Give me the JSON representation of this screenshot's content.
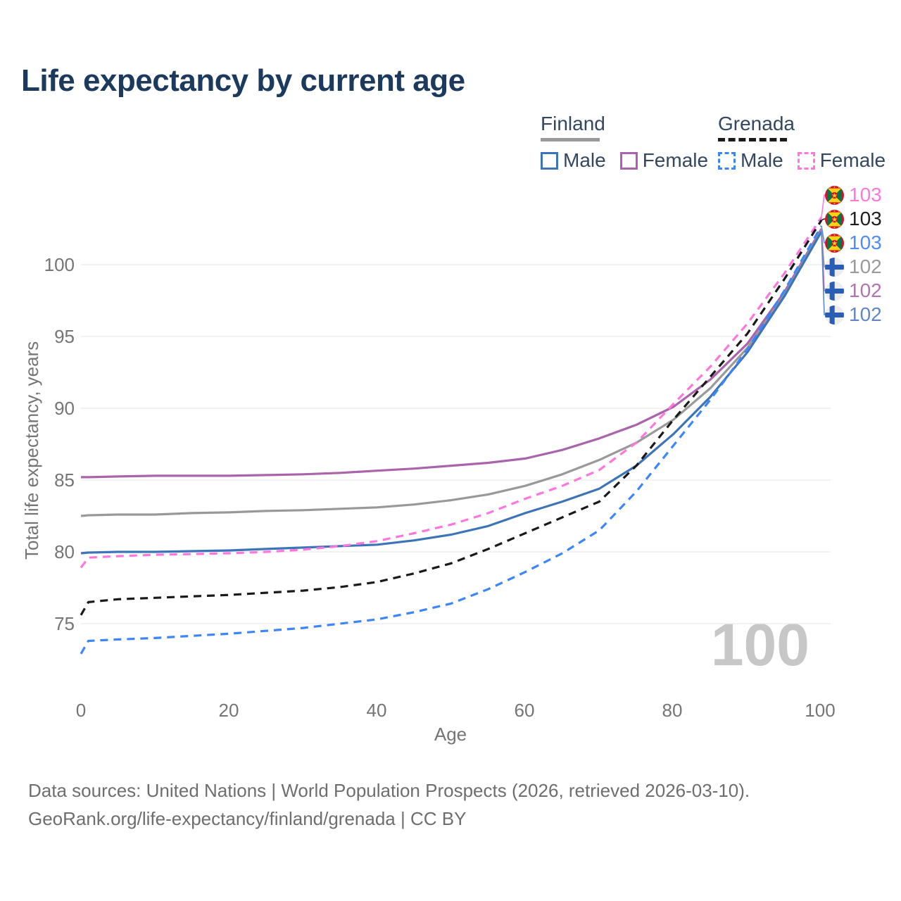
{
  "title": "Life expectancy by current age",
  "legend": {
    "finland": {
      "name": "Finland",
      "male_label": "Male",
      "female_label": "Female"
    },
    "grenada": {
      "name": "Grenada",
      "male_label": "Male",
      "female_label": "Female"
    }
  },
  "axes": {
    "x_label": "Age",
    "y_label": "Total life expectancy, years"
  },
  "watermark": "100",
  "footer": {
    "line1": "Data sources: United Nations | World Population Prospects (2026, retrieved 2026-03-10).",
    "line2": "GeoRank.org/life-expectancy/finland/grenada | CC BY"
  },
  "colors": {
    "title_text": "#1c3a5e",
    "legend_text": "#33475f",
    "axis_text": "#757575",
    "grid": "#e9e9e9",
    "watermark": "#c7c7c7",
    "footer_text": "#6e6e6e",
    "finland_male": "#3d74b8",
    "finland_female": "#ab64ab",
    "finland_total": "#999999",
    "grenada_male": "#3d86fa",
    "grenada_female": "#ff77dd",
    "grenada_total": "#1a1a1a"
  },
  "endpoints": [
    {
      "series": "grenada_female",
      "flag": "grenada",
      "value": "103",
      "color": "#ff77dd"
    },
    {
      "series": "grenada_total",
      "flag": "grenada",
      "value": "103",
      "color": "#1f1f1f"
    },
    {
      "series": "grenada_male",
      "flag": "grenada",
      "value": "103",
      "color": "#4d8cfa"
    },
    {
      "series": "finland_total",
      "flag": "finland",
      "value": "102",
      "color": "#9a9a9a"
    },
    {
      "series": "finland_female",
      "flag": "finland",
      "value": "102",
      "color": "#b273b2"
    },
    {
      "series": "finland_male",
      "flag": "finland",
      "value": "102",
      "color": "#5f87c9"
    }
  ],
  "chart_data": {
    "type": "line",
    "title": "Life expectancy by current age",
    "xlabel": "Age",
    "ylabel": "Total life expectancy, years",
    "xlim": [
      0,
      100
    ],
    "ylim": [
      72,
      104
    ],
    "xticks": [
      0,
      20,
      40,
      60,
      80,
      100
    ],
    "yticks": [
      75,
      80,
      85,
      90,
      95,
      100
    ],
    "grid": "horizontal-only",
    "legend_position": "top-right",
    "x": [
      0,
      1,
      5,
      10,
      15,
      20,
      25,
      30,
      35,
      40,
      45,
      50,
      55,
      60,
      65,
      70,
      75,
      80,
      85,
      90,
      95,
      100
    ],
    "series": [
      {
        "key": "finland_female",
        "name": "Finland Female",
        "color": "#ab64ab",
        "dash": null,
        "values": [
          85.2,
          85.2,
          85.25,
          85.3,
          85.3,
          85.3,
          85.35,
          85.4,
          85.5,
          85.65,
          85.8,
          86.0,
          86.2,
          86.5,
          87.1,
          87.9,
          88.85,
          90.1,
          92.0,
          94.5,
          98.1,
          102.5
        ]
      },
      {
        "key": "finland_total",
        "name": "Finland Both sexes",
        "color": "#999999",
        "dash": null,
        "values": [
          82.5,
          82.55,
          82.6,
          82.6,
          82.7,
          82.75,
          82.85,
          82.9,
          83.0,
          83.1,
          83.3,
          83.6,
          84.0,
          84.6,
          85.4,
          86.4,
          87.6,
          89.2,
          91.4,
          94.2,
          97.9,
          102.4
        ]
      },
      {
        "key": "finland_male",
        "name": "Finland Male",
        "color": "#3d74b8",
        "dash": null,
        "values": [
          79.9,
          79.95,
          80.0,
          80.0,
          80.05,
          80.1,
          80.2,
          80.3,
          80.4,
          80.5,
          80.8,
          81.2,
          81.8,
          82.7,
          83.5,
          84.4,
          86.0,
          88.2,
          90.8,
          93.9,
          97.8,
          102.3
        ]
      },
      {
        "key": "grenada_female",
        "name": "Grenada Female",
        "color": "#ff77dd",
        "dash": "11 8",
        "values": [
          78.9,
          79.6,
          79.7,
          79.8,
          79.85,
          79.9,
          80.0,
          80.15,
          80.4,
          80.75,
          81.3,
          81.9,
          82.7,
          83.7,
          84.6,
          85.7,
          87.6,
          90.3,
          92.9,
          95.9,
          99.4,
          103.3
        ]
      },
      {
        "key": "grenada_total",
        "name": "Grenada Both sexes",
        "color": "#1a1a1a",
        "dash": "11 8",
        "values": [
          75.6,
          76.5,
          76.7,
          76.8,
          76.9,
          77.0,
          77.15,
          77.3,
          77.55,
          77.9,
          78.5,
          79.2,
          80.2,
          81.3,
          82.4,
          83.5,
          86.0,
          89.2,
          92.2,
          95.2,
          99.0,
          103.1
        ]
      },
      {
        "key": "grenada_male",
        "name": "Grenada Male",
        "color": "#3d86fa",
        "dash": "11 8",
        "values": [
          72.9,
          73.8,
          73.9,
          74.0,
          74.15,
          74.3,
          74.5,
          74.7,
          75.0,
          75.3,
          75.8,
          76.4,
          77.4,
          78.6,
          79.9,
          81.5,
          84.2,
          87.4,
          90.6,
          94.1,
          98.2,
          102.7
        ]
      }
    ]
  }
}
